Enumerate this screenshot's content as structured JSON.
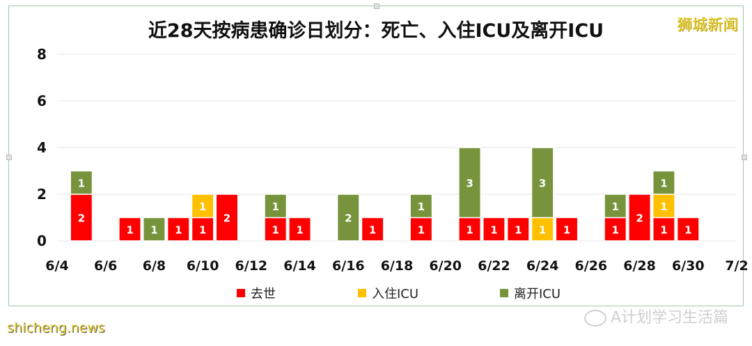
{
  "chart_data": {
    "type": "bar",
    "stacked": true,
    "title": "近28天按病患确诊日划分：死亡、入住ICU及离开ICU",
    "x_tick_labels": [
      "6/4",
      "6/6",
      "6/8",
      "6/10",
      "6/12",
      "6/14",
      "6/16",
      "6/18",
      "6/20",
      "6/22",
      "6/24",
      "6/26",
      "6/28",
      "6/30",
      "7/2"
    ],
    "categories": [
      "6/5",
      "6/6",
      "6/7",
      "6/8",
      "6/9",
      "6/10",
      "6/11",
      "6/12",
      "6/13",
      "6/14",
      "6/15",
      "6/16",
      "6/17",
      "6/18",
      "6/19",
      "6/20",
      "6/21",
      "6/22",
      "6/23",
      "6/24",
      "6/25",
      "6/26",
      "6/27",
      "6/28",
      "6/29",
      "6/30",
      "7/1"
    ],
    "series": [
      {
        "name": "去世",
        "color": "#ff0000",
        "values": [
          2,
          0,
          1,
          0,
          1,
          1,
          2,
          0,
          1,
          1,
          0,
          0,
          1,
          0,
          1,
          0,
          1,
          1,
          1,
          0,
          1,
          0,
          1,
          2,
          1,
          1,
          0
        ]
      },
      {
        "name": "入住ICU",
        "color": "#ffc000",
        "values": [
          0,
          0,
          0,
          0,
          0,
          1,
          0,
          0,
          0,
          0,
          0,
          0,
          0,
          0,
          0,
          0,
          0,
          0,
          0,
          1,
          0,
          0,
          0,
          0,
          1,
          0,
          0
        ]
      },
      {
        "name": "离开ICU",
        "color": "#77933c",
        "values": [
          1,
          0,
          0,
          1,
          0,
          0,
          0,
          0,
          1,
          0,
          0,
          2,
          0,
          0,
          1,
          0,
          3,
          0,
          0,
          3,
          0,
          0,
          1,
          0,
          1,
          0,
          0
        ]
      }
    ],
    "ylim": [
      0,
      8
    ],
    "y_ticks": [
      0,
      2,
      4,
      6,
      8
    ],
    "grid": true,
    "legend_position": "bottom",
    "data_labels": true
  },
  "brand_text": "狮城新闻",
  "watermark_right": "A计划学习生活篇",
  "watermark_left": "shicheng.news"
}
